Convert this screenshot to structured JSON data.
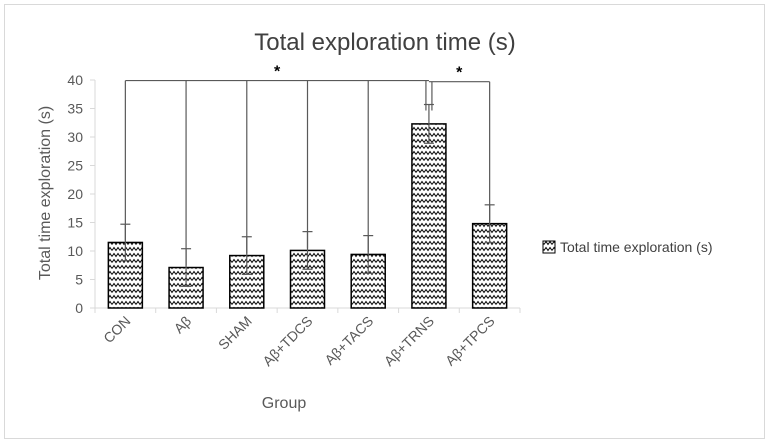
{
  "chart_data": {
    "type": "bar",
    "title": "Total exploration time (s)",
    "xlabel": "Group",
    "ylabel": "Total time exploration (s)",
    "categories": [
      "CON",
      "Aβ",
      "SHAM",
      "Aβ+TDCS",
      "Aβ+TACS",
      "Aβ+TRNS",
      "Aβ+TPCS"
    ],
    "series": [
      {
        "name": "Total time exploration (s)",
        "values": [
          11.5,
          7.1,
          9.2,
          10.1,
          9.4,
          32.3,
          14.8
        ],
        "error": [
          3.2,
          3.3,
          3.3,
          3.3,
          3.3,
          3.4,
          3.3
        ]
      }
    ],
    "ylim": [
      0,
      40
    ],
    "yticks": [
      0,
      5,
      10,
      15,
      20,
      25,
      30,
      35,
      40
    ],
    "grid": false,
    "legend_position": "right",
    "bar_pattern": "zigzag",
    "bar_edge_color": "#000000",
    "annotations": [
      {
        "type": "significance",
        "label": "*",
        "from": "Aβ+TRNS",
        "to": [
          "CON",
          "Aβ",
          "SHAM",
          "Aβ+TDCS",
          "Aβ+TACS"
        ]
      },
      {
        "type": "significance",
        "label": "*",
        "from": "Aβ+TRNS",
        "to": [
          "Aβ+TPCS"
        ]
      }
    ]
  }
}
